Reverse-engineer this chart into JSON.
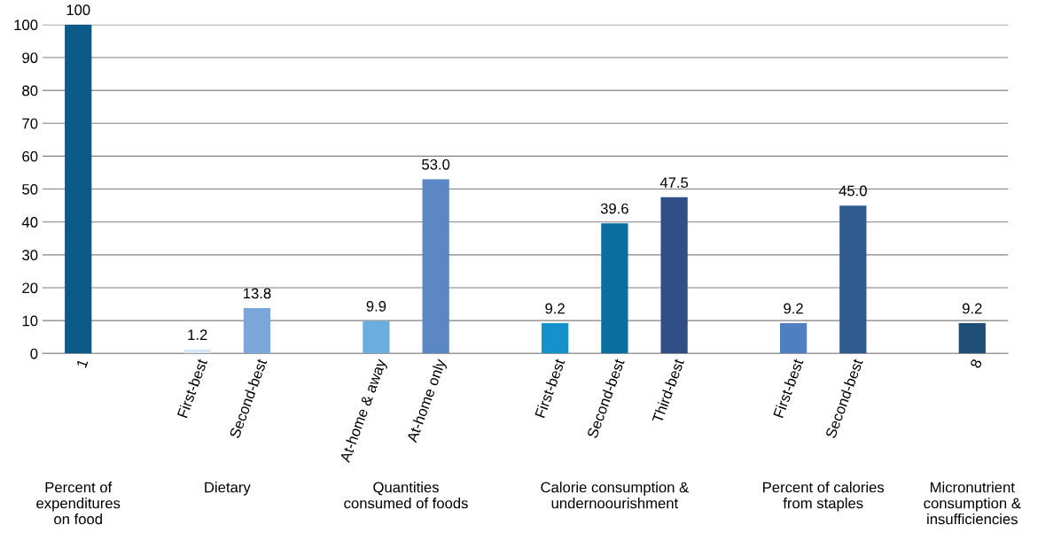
{
  "chart_data": {
    "type": "bar",
    "categories": [
      "1",
      null,
      "First-best",
      "Second-best",
      null,
      "At-home & away",
      "At-home only",
      null,
      "First-best",
      "Second-best",
      "Third-best",
      null,
      "First-best",
      "Second-best",
      null,
      "8"
    ],
    "values": [
      100,
      null,
      1.2,
      13.8,
      null,
      9.9,
      53.0,
      null,
      9.2,
      39.6,
      47.5,
      null,
      9.2,
      45.0,
      null,
      9.2
    ],
    "value_labels": [
      "100",
      null,
      "1.2",
      "13.8",
      null,
      "9.9",
      "53.0",
      null,
      "9.2",
      "39.6",
      "47.5",
      null,
      "9.2",
      "45.0",
      null,
      "9.2"
    ],
    "colors": [
      "#0b5a8a",
      null,
      "#d6e4f3",
      "#7aa6da",
      null,
      "#6aaee0",
      "#5b87c5",
      null,
      "#1591cc",
      "#0a6fa0",
      "#2f4f86",
      null,
      "#4f7fc0",
      "#2f5b8f",
      null,
      "#1f4e78"
    ],
    "annotations": [
      "Percent of\nexpenditures\non food",
      "Dietary",
      "Quantities\nconsumed of foods",
      "Calorie consumption &\nundernoourishment",
      "Percent of calories\nfrom staples",
      "Micronutrient\nconsumption &\ninsufficiencies"
    ],
    "ylim": [
      0,
      100
    ],
    "yticks": [
      0,
      10,
      20,
      30,
      40,
      50,
      60,
      70,
      80,
      90,
      100
    ],
    "grid": "y",
    "legend": false
  }
}
